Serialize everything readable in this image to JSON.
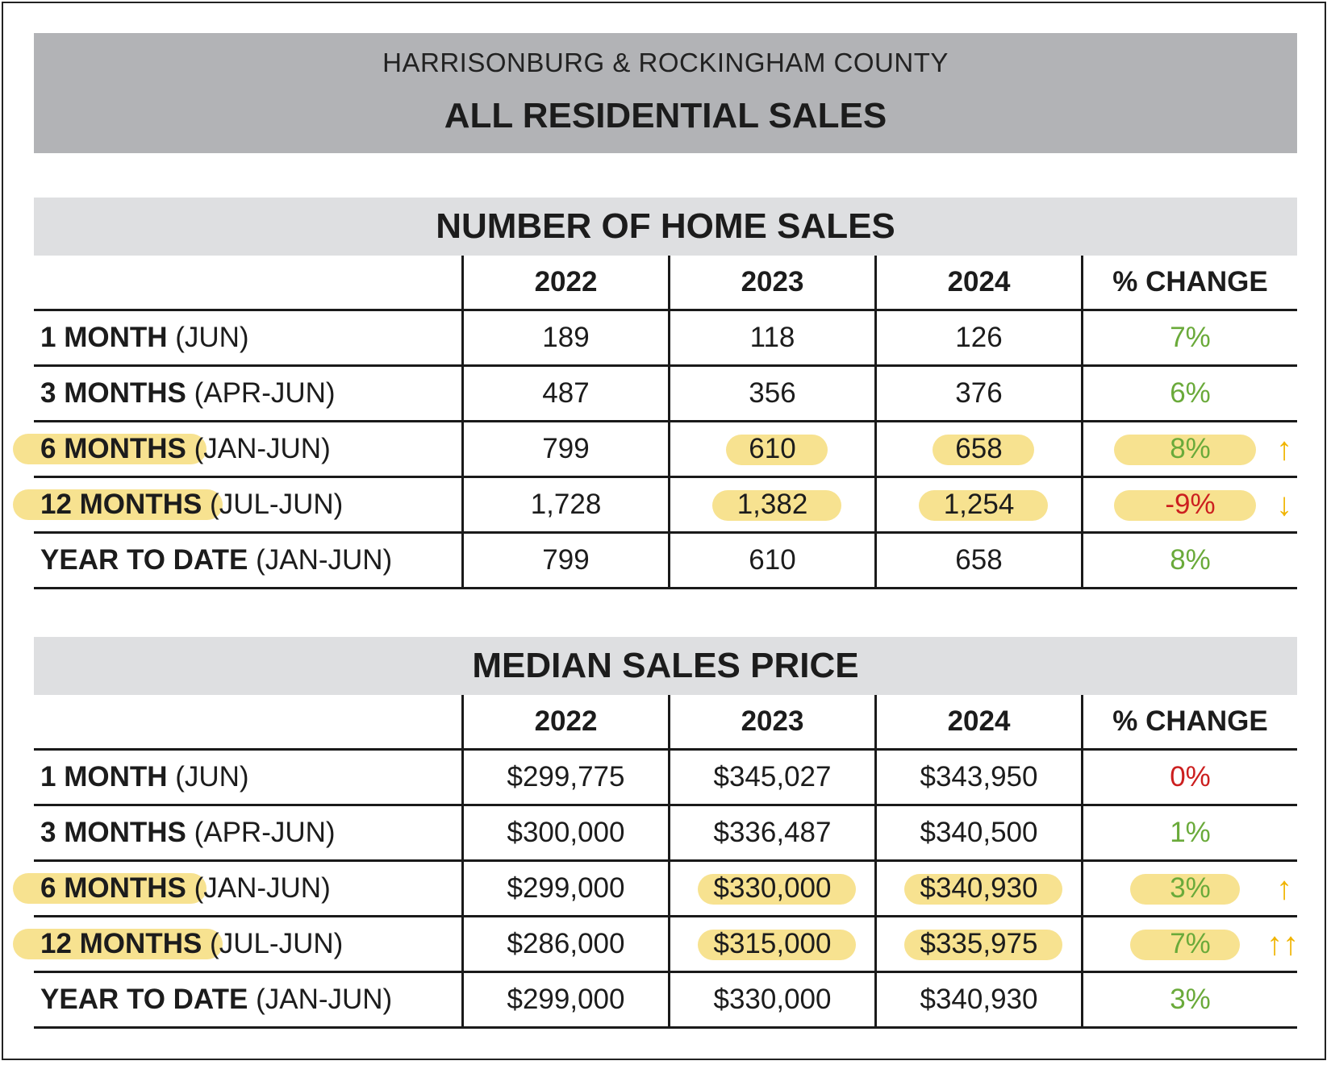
{
  "header": {
    "subtitle": "HARRISONBURG & ROCKINGHAM COUNTY",
    "title": "ALL RESIDENTIAL SALES"
  },
  "chart_data": [
    {
      "type": "table",
      "title": "NUMBER OF HOME SALES",
      "columns": [
        "",
        "2022",
        "2023",
        "2024",
        "% CHANGE"
      ],
      "rows": [
        {
          "label_bold": "1 MONTH",
          "label_rest": " (JUN)",
          "values": [
            "189",
            "118",
            "126"
          ],
          "change": "7%",
          "change_color": "#6aaa3a"
        },
        {
          "label_bold": "3 MONTHS",
          "label_rest": " (APR-JUN)",
          "values": [
            "487",
            "356",
            "376"
          ],
          "change": "6%",
          "change_color": "#6aaa3a"
        },
        {
          "label_bold": "6 MONTHS",
          "label_rest": " (JAN-JUN)",
          "values": [
            "799",
            "610",
            "658"
          ],
          "change": "8%",
          "change_color": "#6aaa3a",
          "arrow": "↑"
        },
        {
          "label_bold": "12 MONTHS",
          "label_rest": " (JUL-JUN)",
          "values": [
            "1,728",
            "1,382",
            "1,254"
          ],
          "change": "-9%",
          "change_color": "#cc1f1f",
          "arrow": "↓"
        },
        {
          "label_bold": "YEAR TO DATE",
          "label_rest": " (JAN-JUN)",
          "values": [
            "799",
            "610",
            "658"
          ],
          "change": "8%",
          "change_color": "#6aaa3a"
        }
      ]
    },
    {
      "type": "table",
      "title": "MEDIAN SALES PRICE",
      "columns": [
        "",
        "2022",
        "2023",
        "2024",
        "% CHANGE"
      ],
      "rows": [
        {
          "label_bold": "1 MONTH",
          "label_rest": " (JUN)",
          "values": [
            "$299,775",
            "$345,027",
            "$343,950"
          ],
          "change": "0%",
          "change_color": "#cc1f1f"
        },
        {
          "label_bold": "3 MONTHS",
          "label_rest": " (APR-JUN)",
          "values": [
            "$300,000",
            "$336,487",
            "$340,500"
          ],
          "change": "1%",
          "change_color": "#6aaa3a"
        },
        {
          "label_bold": "6 MONTHS",
          "label_rest": " (JAN-JUN)",
          "values": [
            "$299,000",
            "$330,000",
            "$340,930"
          ],
          "change": "3%",
          "change_color": "#6aaa3a",
          "arrow": "↑"
        },
        {
          "label_bold": "12 MONTHS",
          "label_rest": " (JUL-JUN)",
          "values": [
            "$286,000",
            "$315,000",
            "$335,975"
          ],
          "change": "7%",
          "change_color": "#6aaa3a",
          "arrow": "↑↑"
        },
        {
          "label_bold": "YEAR TO DATE",
          "label_rest": " (JAN-JUN)",
          "values": [
            "$299,000",
            "$330,000",
            "$340,930"
          ],
          "change": "3%",
          "change_color": "#6aaa3a"
        }
      ]
    }
  ],
  "highlight_color": "#f6df84",
  "arrow_color": "#f0b400"
}
